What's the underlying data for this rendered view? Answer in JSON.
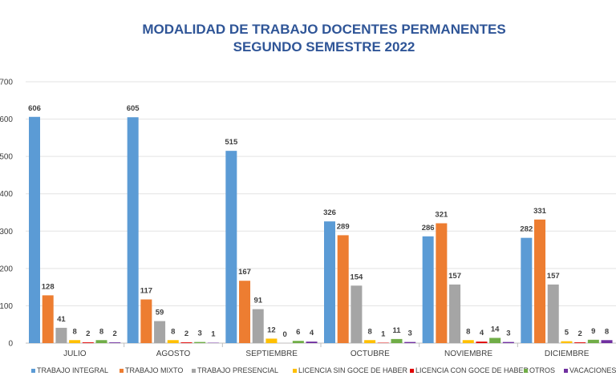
{
  "chart_data": {
    "type": "bar",
    "title": "MODALIDAD DE TRABAJO DOCENTES PERMANENTES",
    "subtitle": "SEGUNDO SEMESTRE 2022",
    "categories": [
      "JULIO",
      "AGOSTO",
      "SEPTIEMBRE",
      "OCTUBRE",
      "NOVIEMBRE",
      "DICIEMBRE"
    ],
    "y_ticks": [
      "0",
      "100",
      "200",
      "300",
      "400",
      "500",
      "600",
      "700"
    ],
    "ylim": [
      0,
      700
    ],
    "grid": true,
    "legend_position": "bottom",
    "series": [
      {
        "name": "TRABAJO INTEGRAL",
        "color": "#5b9bd5",
        "values": [
          606,
          605,
          515,
          326,
          286,
          282
        ]
      },
      {
        "name": "TRABAJO MIXTO",
        "color": "#ed7d31",
        "values": [
          128,
          117,
          167,
          289,
          321,
          331
        ]
      },
      {
        "name": "TRABAJO PRESENCIAL",
        "color": "#a5a5a5",
        "values": [
          41,
          59,
          91,
          154,
          157,
          157
        ]
      },
      {
        "name": "LICENCIA SIN GOCE DE HABER",
        "color": "#ffc000",
        "values": [
          8,
          8,
          12,
          8,
          8,
          5
        ]
      },
      {
        "name": "LICENCIA CON GOCE DE HABER",
        "color": "#e00000",
        "values": [
          2,
          2,
          0,
          1,
          4,
          2
        ]
      },
      {
        "name": "OTROS",
        "color": "#70ad47",
        "values": [
          8,
          3,
          6,
          11,
          14,
          9
        ]
      },
      {
        "name": "VACACIONES",
        "color": "#7030a0",
        "values": [
          2,
          1,
          4,
          3,
          3,
          8
        ]
      }
    ]
  }
}
